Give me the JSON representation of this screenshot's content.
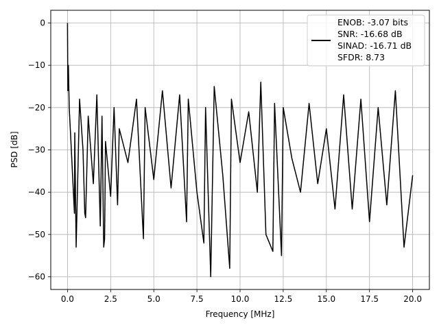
{
  "chart_data": {
    "type": "line",
    "title": "",
    "xlabel": "Frequency [MHz]",
    "ylabel": "PSD [dB]",
    "xlim": [
      -0.97,
      20.97
    ],
    "ylim": [
      -63,
      3
    ],
    "grid": true,
    "legend_position": "top-right",
    "line_color": "#000000",
    "x_ticks": [
      0.0,
      2.5,
      5.0,
      7.5,
      10.0,
      12.5,
      15.0,
      17.5,
      20.0
    ],
    "x_tick_labels": [
      "0.0",
      "2.5",
      "5.0",
      "7.5",
      "10.0",
      "12.5",
      "15.0",
      "17.5",
      "20.0"
    ],
    "y_ticks": [
      0,
      -10,
      -20,
      -30,
      -40,
      -50,
      -60
    ],
    "y_tick_labels": [
      "0",
      "−10",
      "−20",
      "−30",
      "−40",
      "−50",
      "−60"
    ],
    "legend_lines": [
      "ENOB: -3.07 bits",
      "SNR: -16.68 dB",
      "SINAD: -16.71 dB",
      "SFDR: 8.73"
    ],
    "series": [
      {
        "x": [
          0.0,
          0.02,
          0.05,
          0.1,
          0.2,
          0.4,
          0.42,
          0.5,
          0.7,
          0.9,
          1.0,
          1.05,
          1.2,
          1.5,
          1.7,
          1.9,
          2.0,
          2.1,
          2.15,
          2.2,
          2.5,
          2.7,
          2.9,
          3.0,
          3.5,
          4.0,
          4.4,
          4.5,
          5.0,
          5.5,
          6.0,
          6.5,
          6.9,
          7.0,
          7.5,
          7.9,
          8.0,
          8.3,
          8.5,
          9.0,
          9.4,
          9.5,
          10.0,
          10.5,
          11.0,
          11.2,
          11.5,
          11.9,
          12.0,
          12.4,
          12.5,
          13.0,
          13.5,
          14.0,
          14.5,
          15.0,
          15.5,
          16.0,
          16.5,
          17.0,
          17.5,
          18.0,
          18.5,
          19.0,
          19.5,
          20.0
        ],
        "y": [
          0,
          -16,
          -10,
          -20,
          -28,
          -45,
          -26,
          -53,
          -18,
          -30,
          -45,
          -46,
          -22,
          -38,
          -17,
          -48,
          -22,
          -53,
          -51,
          -28,
          -41,
          -20,
          -43,
          -25,
          -33,
          -18,
          -51,
          -20,
          -37,
          -16,
          -39,
          -17,
          -47,
          -18,
          -40,
          -52,
          -20,
          -60,
          -15,
          -36,
          -58,
          -18,
          -33,
          -21,
          -40,
          -14,
          -50,
          -54,
          -19,
          -55,
          -20,
          -32,
          -40,
          -19,
          -38,
          -25,
          -44,
          -17,
          -44,
          -18,
          -47,
          -20,
          -43,
          -16,
          -53,
          -36
        ]
      }
    ]
  }
}
